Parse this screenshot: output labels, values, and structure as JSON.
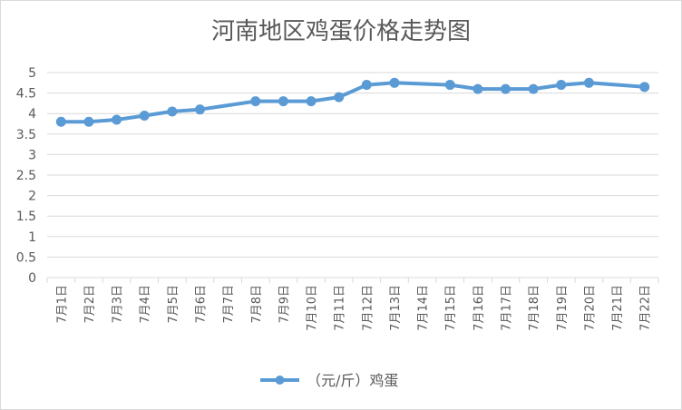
{
  "chart_data": {
    "type": "line",
    "title": "河南地区鸡蛋价格走势图",
    "categories": [
      "7月1日",
      "7月2日",
      "7月3日",
      "7月4日",
      "7月5日",
      "7月6日",
      "7月7日",
      "7月8日",
      "7月9日",
      "7月10日",
      "7月11日",
      "7月12日",
      "7月13日",
      "7月14日",
      "7月15日",
      "7月16日",
      "7月17日",
      "7月18日",
      "7月19日",
      "7月20日",
      "7月21日",
      "7月22日"
    ],
    "series": [
      {
        "name": "（元/斤）鸡蛋",
        "color": "#5b9bd5",
        "values": [
          3.8,
          3.8,
          3.85,
          3.95,
          4.05,
          4.1,
          null,
          4.3,
          4.3,
          4.3,
          4.4,
          4.7,
          4.75,
          null,
          4.7,
          4.6,
          4.6,
          4.6,
          4.7,
          4.75,
          null,
          4.65
        ]
      }
    ],
    "yticks": [
      "0",
      "0.5",
      "1",
      "1.5",
      "2",
      "2.5",
      "3",
      "3.5",
      "4",
      "4.5",
      "5"
    ],
    "ylim": [
      0,
      5
    ],
    "grid": true,
    "legend_position": "bottom"
  }
}
